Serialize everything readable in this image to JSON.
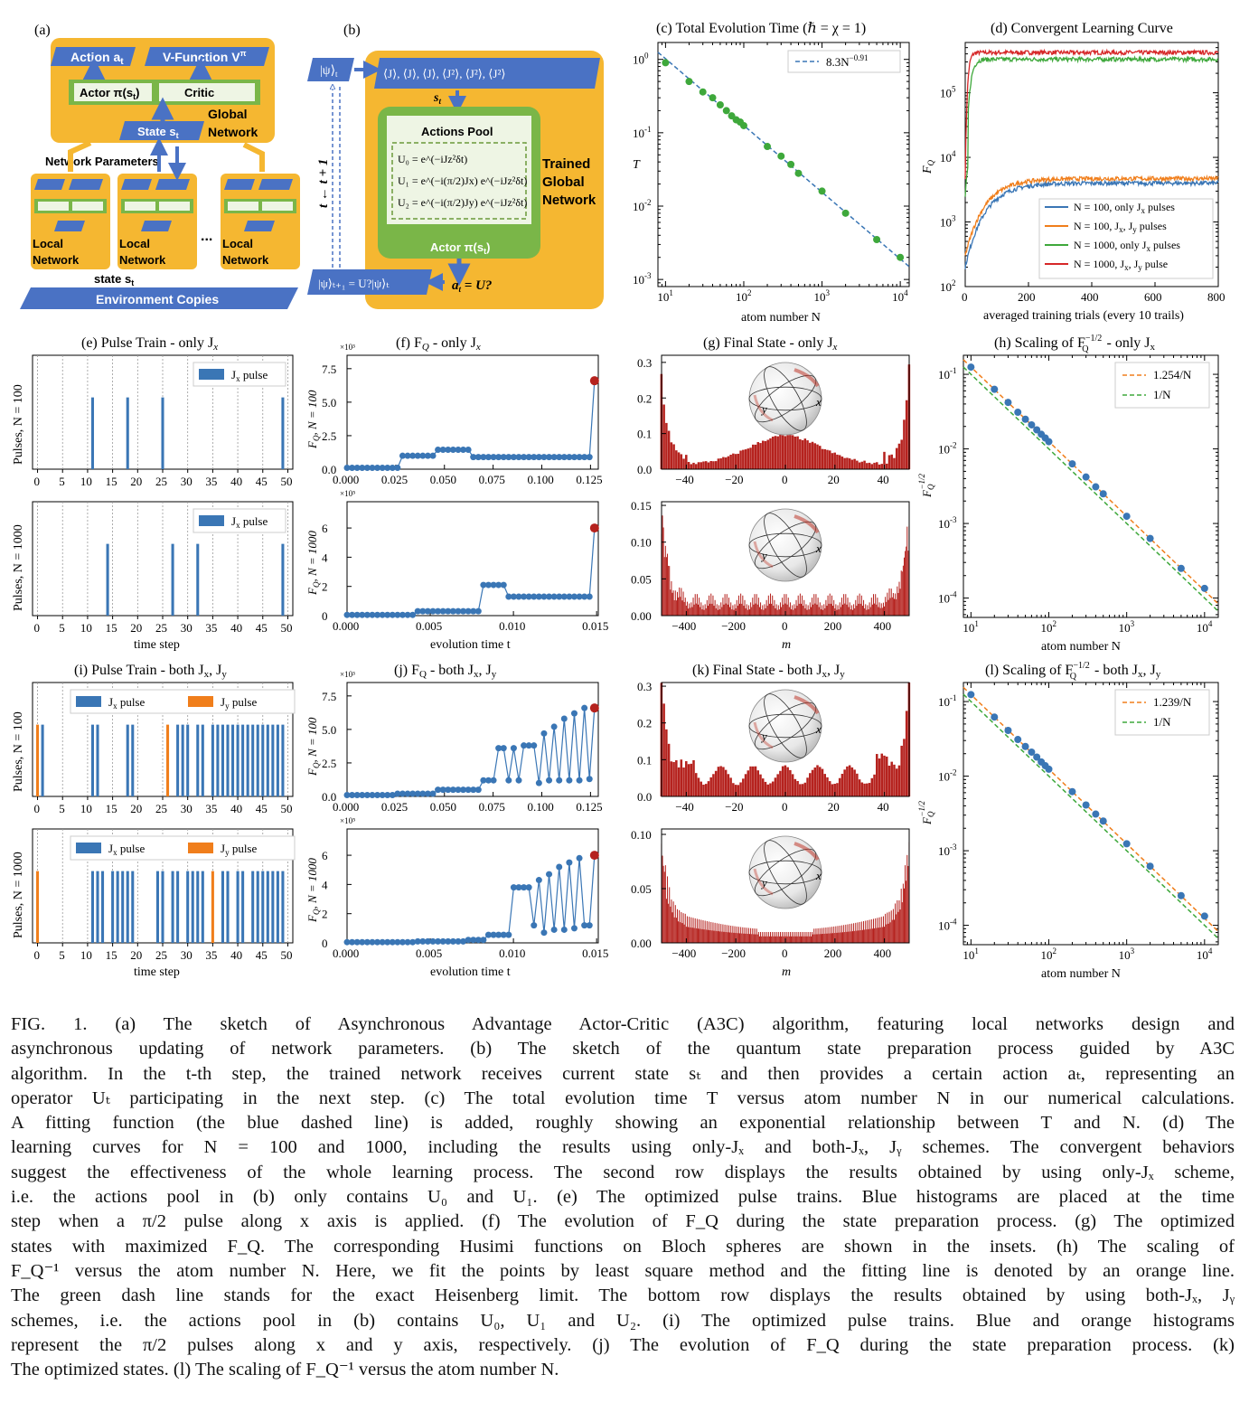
{
  "panel_labels": {
    "a": "(a)",
    "b": "(b)",
    "c": "(c) Total Evolution Time (ℏ = χ = 1)",
    "d": "(d) Convergent Learning Curve",
    "e": "(e) Pulse Train - only J",
    "f": "(f) F",
    "g": "(g) Final State - only J",
    "h": "(h) Scaling of F",
    "i": "(i) Pulse Train - both J",
    "j": "(j) F",
    "k": "(k) Final State - both J",
    "l": "(l) Scaling of F"
  },
  "diagram_a": {
    "action": "Action a",
    "action_sub": "t",
    "vfunc": "V-Function V",
    "vfunc_sup": "π",
    "vfunc_sub": "t",
    "actor": "Actor π(s",
    "actor_tail": ")",
    "critic": "Critic",
    "global": "Global",
    "global2": "Network",
    "state": "State s",
    "netparams": "Network Parameters",
    "local": "Local",
    "local2": "Network",
    "dots": "...",
    "state_s": "state s",
    "env": "Environment Copies"
  },
  "diagram_b": {
    "psi_t": "|ψ⟩",
    "obs": "⟨J⟩, ⟨J⟩, ⟨J⟩, ⟨J²⟩, ⟨J²⟩, ⟨J²⟩",
    "s_t": "s",
    "pool_title": "Actions Pool",
    "u0": "U₀ = e^(−iJz²δt)",
    "u1": "U₁ = e^(−i(π/2)Jx) e^(−iJz²δt)",
    "u2": "U₂ = e^(−i(π/2)Jy) e^(−iJz²δt)",
    "trained": "Trained",
    "trained2": "Global",
    "trained3": "Network",
    "actor": "Actor π(s",
    "actor_tail": ")",
    "time_step": "t ← t + 1",
    "psi_next": "|ψ⟩ₜ₊₁ = U?|ψ⟩ₜ",
    "a_t": "a",
    "a_eq": " = U?"
  },
  "colors": {
    "blue": "#3a76b5",
    "orange": "#f07e1b",
    "green": "#3ea83b",
    "red": "#d62728",
    "dark_red": "#b5221e",
    "gold": "#f5b731",
    "arrow_blue": "#4a72c4",
    "green_box": "#7ab648"
  },
  "chart_data": [
    {
      "id": "c",
      "type": "scatter",
      "title": "(c) Total Evolution Time (ℏ = χ = 1)",
      "xlabel": "atom number N",
      "ylabel": "T",
      "xscale": "log",
      "yscale": "log",
      "xlim": [
        8,
        13000
      ],
      "ylim": [
        0.0008,
        1.7
      ],
      "legend": "8.3N",
      "legend_sup": "−0.91",
      "x": [
        10,
        20,
        30,
        40,
        50,
        60,
        70,
        80,
        90,
        100,
        200,
        300,
        400,
        500,
        1000,
        2000,
        5000,
        10000
      ],
      "y": [
        0.9,
        0.5,
        0.36,
        0.3,
        0.24,
        0.2,
        0.17,
        0.15,
        0.14,
        0.125,
        0.065,
        0.048,
        0.037,
        0.028,
        0.016,
        0.008,
        0.0035,
        0.002
      ]
    },
    {
      "id": "d",
      "type": "line",
      "title": "(d) Convergent Learning Curve",
      "xlabel": "averaged training trials (every 10 trails)",
      "ylabel": "F",
      "ylabel_sub": "Q",
      "yscale": "log",
      "xlim": [
        0,
        800
      ],
      "ylim": [
        100,
        600000
      ],
      "series": [
        {
          "name": "N = 100, only J",
          "name_sub": "x",
          "name_tail": " pulses",
          "start": 200,
          "plateau": 4000
        },
        {
          "name": "N = 100, J",
          "name_sub": "x",
          "name_tail": ", J",
          "name_sub2": "y",
          "name_tail2": " pulses",
          "start": 300,
          "plateau": 4700
        },
        {
          "name": "N = 1000, only J",
          "name_sub": "x",
          "name_tail": " pulses",
          "start": 2500,
          "plateau": 330000
        },
        {
          "name": "N = 1000, J",
          "name_sub": "x",
          "name_tail": ", J",
          "name_sub2": "y",
          "name_tail2": " pulse",
          "start": 5000,
          "plateau": 420000
        }
      ]
    },
    {
      "id": "e1",
      "type": "bar",
      "ylabel": "Pulses, N = 100",
      "xlim": [
        -1,
        51
      ],
      "legend": [
        "J",
        "x",
        " pulse"
      ],
      "jx": [
        11,
        18,
        25,
        49
      ],
      "jy": []
    },
    {
      "id": "e2",
      "type": "bar",
      "ylabel": "Pulses, N = 1000",
      "xlabel": "time step",
      "xlim": [
        -1,
        51
      ],
      "legend": [
        "J",
        "x",
        " pulse"
      ],
      "jx": [
        14,
        27,
        32,
        49
      ],
      "jy": []
    },
    {
      "id": "f1",
      "type": "line",
      "ylabel": "F",
      "ylabel_rest": ", N = 100",
      "exp": "×10³",
      "xlim": [
        0,
        0.129
      ],
      "ylim": [
        0,
        8.5
      ],
      "xticks": [
        "0.000",
        "0.025",
        "0.050",
        "0.075",
        "0.100",
        "0.125"
      ],
      "yticks": [
        "0.0",
        "2.5",
        "5.0",
        "7.5"
      ],
      "n": 50,
      "levels": [
        [
          0,
          0.1
        ],
        [
          11,
          1.0
        ],
        [
          18,
          1.45
        ],
        [
          25,
          0.9
        ],
        [
          49,
          6.6
        ]
      ]
    },
    {
      "id": "f2",
      "type": "line",
      "ylabel": "F",
      "ylabel_rest": ", N = 1000",
      "xlabel": "evolution time t",
      "exp": "×10⁵",
      "xlim": [
        0,
        0.0151
      ],
      "ylim": [
        0,
        7.8
      ],
      "xticks": [
        "0.000",
        "0.005",
        "0.010",
        "0.015"
      ],
      "yticks": [
        "0",
        "2",
        "4",
        "6"
      ],
      "n": 50,
      "levels": [
        [
          0,
          0.05
        ],
        [
          14,
          0.3
        ],
        [
          27,
          2.1
        ],
        [
          32,
          1.3
        ],
        [
          49,
          6.0
        ]
      ]
    },
    {
      "id": "g1",
      "type": "histogram",
      "xlim": [
        -50,
        50
      ],
      "ylim": [
        0,
        0.32
      ],
      "xticks": [
        "−40",
        "−20",
        "0",
        "20",
        "40"
      ],
      "yticks": [
        "0.0",
        "0.1",
        "0.2",
        "0.3"
      ],
      "shape": "g1"
    },
    {
      "id": "g2",
      "type": "histogram",
      "xlabel": "m",
      "xlim": [
        -500,
        500
      ],
      "ylim": [
        0,
        0.155
      ],
      "xticks": [
        "−400",
        "−200",
        "0",
        "200",
        "400"
      ],
      "yticks": [
        "0.00",
        "0.05",
        "0.10",
        "0.15"
      ],
      "shape": "g2"
    },
    {
      "id": "h",
      "type": "scatter",
      "title": "(h) Scaling of F",
      "xlabel": "atom number N",
      "ylabel": "F",
      "xscale": "log",
      "yscale": "log",
      "xlim": [
        8,
        15000
      ],
      "ylim": [
        5.5e-05,
        0.18
      ],
      "legend": [
        {
          "name": "1.254/N",
          "coef": 1.254,
          "color": "orange"
        },
        {
          "name": "1/N",
          "coef": 1.0,
          "color": "green"
        }
      ],
      "x": [
        10,
        20,
        30,
        40,
        50,
        60,
        70,
        80,
        90,
        100,
        200,
        300,
        400,
        500,
        1000,
        2000,
        5000,
        10000
      ],
      "y": [
        0.125,
        0.063,
        0.042,
        0.031,
        0.025,
        0.021,
        0.018,
        0.0157,
        0.014,
        0.0125,
        0.0063,
        0.0042,
        0.0031,
        0.0025,
        0.00125,
        0.00063,
        0.00025,
        0.000135
      ]
    },
    {
      "id": "i1",
      "type": "bar",
      "ylabel": "Pulses, N = 100",
      "xlim": [
        -1,
        51
      ],
      "legend_x": [
        "J",
        "x",
        " pulse"
      ],
      "legend_y": [
        "J",
        "y",
        " pulse"
      ],
      "jx": [
        1,
        11,
        12,
        18,
        19,
        28,
        29,
        30,
        32,
        33,
        35,
        36,
        37,
        38,
        39,
        40,
        41,
        42,
        43,
        44,
        45,
        46,
        47,
        48,
        49
      ],
      "jy": [
        0,
        26
      ]
    },
    {
      "id": "i2",
      "type": "bar",
      "ylabel": "Pulses, N = 1000",
      "xlabel": "time step",
      "xlim": [
        -1,
        51
      ],
      "legend_x": [
        "J",
        "x",
        " pulse"
      ],
      "legend_y": [
        "J",
        "y",
        " pulse"
      ],
      "jx": [
        11,
        12,
        13,
        15,
        16,
        17,
        18,
        19,
        24,
        25,
        27,
        28,
        30,
        31,
        32,
        33,
        37,
        38,
        40,
        41,
        43,
        44,
        45,
        46,
        47,
        48,
        49
      ],
      "jy": [
        0,
        35
      ]
    },
    {
      "id": "j1",
      "type": "line",
      "ylabel": "F",
      "ylabel_rest": ", N = 100",
      "exp": "×10³",
      "xlim": [
        0,
        0.129
      ],
      "ylim": [
        0,
        8.5
      ],
      "xticks": [
        "0.000",
        "0.025",
        "0.050",
        "0.075",
        "0.100",
        "0.125"
      ],
      "yticks": [
        "0.0",
        "2.5",
        "5.0",
        "7.5"
      ],
      "shape": "j1"
    },
    {
      "id": "j2",
      "type": "line",
      "ylabel": "F",
      "ylabel_rest": ", N = 1000",
      "xlabel": "evolution time t",
      "exp": "×10⁵",
      "xlim": [
        0,
        0.0151
      ],
      "ylim": [
        0,
        7.8
      ],
      "xticks": [
        "0.000",
        "0.005",
        "0.010",
        "0.015"
      ],
      "yticks": [
        "0",
        "2",
        "4",
        "6"
      ],
      "shape": "j2"
    },
    {
      "id": "k1",
      "type": "histogram",
      "xlim": [
        -50,
        50
      ],
      "ylim": [
        0,
        0.31
      ],
      "xticks": [
        "−40",
        "−20",
        "0",
        "20",
        "40"
      ],
      "yticks": [
        "0.0",
        "0.1",
        "0.2",
        "0.3"
      ],
      "shape": "k1"
    },
    {
      "id": "k2",
      "type": "histogram",
      "xlabel": "m",
      "xlim": [
        -500,
        500
      ],
      "ylim": [
        0,
        0.105
      ],
      "xticks": [
        "−400",
        "−200",
        "0",
        "200",
        "400"
      ],
      "yticks": [
        "0.00",
        "0.05",
        "0.10"
      ],
      "shape": "k2"
    },
    {
      "id": "l",
      "type": "scatter",
      "title": "(l) Scaling of F",
      "xlabel": "atom number N",
      "ylabel": "F",
      "xscale": "log",
      "yscale": "log",
      "xlim": [
        8,
        15000
      ],
      "ylim": [
        5.5e-05,
        0.18
      ],
      "legend": [
        {
          "name": "1.239/N",
          "coef": 1.239,
          "color": "orange"
        },
        {
          "name": "1/N",
          "coef": 1.0,
          "color": "green"
        }
      ],
      "x": [
        10,
        20,
        30,
        40,
        50,
        60,
        70,
        80,
        90,
        100,
        200,
        300,
        400,
        500,
        1000,
        2000,
        5000,
        10000
      ],
      "y": [
        0.124,
        0.062,
        0.041,
        0.031,
        0.025,
        0.021,
        0.018,
        0.0155,
        0.0138,
        0.0124,
        0.0062,
        0.0041,
        0.0031,
        0.0025,
        0.00124,
        0.00062,
        0.00025,
        0.000133
      ]
    }
  ],
  "caption": [
    "FIG. 1.     (a) The sketch of Asynchronous Advantage Actor-Critic (A3C) algorithm, featuring local networks design and",
    "asynchronous updating of network parameters.  (b) The sketch of the quantum state preparation process guided by A3C",
    "algorithm. In the t-th step, the trained network receives current state sₜ and then provides a certain action aₜ, representing an",
    "operator Uₜ participating in the next step. (c) The total evolution time T versus atom number N in our numerical calculations.",
    "A fitting function (the blue dashed line) is added, roughly showing an exponential relationship between T and N.  (d) The",
    "learning curves for N = 100 and 1000, including the results using only-Jₓ and both-Jₓ, Jᵧ schemes. The convergent behaviors",
    "suggest the effectiveness of the whole learning process. The second row displays the results obtained by using only-Jₓ scheme,",
    "i.e. the actions pool in (b) only contains U₀ and U₁.  (e) The optimized pulse trains.  Blue histograms are placed at the time",
    "step when a π/2 pulse along x axis is applied.  (f) The evolution of F_Q during the state preparation process.  (g) The optimized",
    "states with maximized F_Q.  The corresponding Husimi functions on Bloch spheres are shown in the insets.  (h) The scaling of",
    "F_Q⁻¹ versus the atom number N.  Here, we fit the points by least square method and the fitting line is denoted by an orange line.",
    "The green dash line stands for the exact Heisenberg limit.  The bottom row displays the results obtained by using both-Jₓ, Jᵧ",
    "schemes, i.e.  the actions pool in (b) contains U₀, U₁ and U₂.  (i) The optimized pulse trains.  Blue and orange histograms",
    "represent the π/2 pulses along x and y axis, respectively.  (j) The evolution of F_Q during the state preparation process.  (k)",
    "The optimized states.  (l) The scaling of F_Q⁻¹ versus the atom number N."
  ]
}
